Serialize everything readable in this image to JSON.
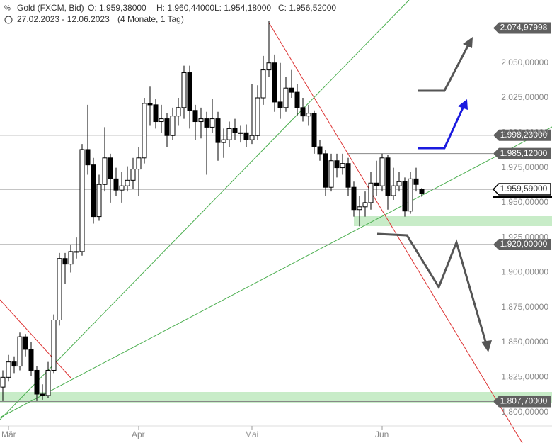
{
  "chart_data": {
    "type": "candlestick",
    "title": "Gold (FXCM, Bid)",
    "header": {
      "open": "O: 1.959,38000",
      "high": "H: 1.960,44000",
      "low": "L: 1.954,18000",
      "close": "C: 1.956,52000",
      "range": "27.02.2023 - 12.06.2023",
      "period": "(4 Monate, 1 Tag)"
    },
    "categories": [
      null,
      "Mär",
      null,
      null,
      null,
      null,
      null,
      null,
      null,
      null,
      null,
      null,
      null,
      null,
      null,
      null,
      null,
      null,
      null,
      null,
      null,
      null,
      null,
      null,
      "Apr",
      null,
      null,
      null,
      null,
      null,
      null,
      null,
      null,
      null,
      null,
      null,
      null,
      null,
      null,
      null,
      null,
      null,
      null,
      null,
      "Mai",
      null,
      null,
      null,
      null,
      null,
      null,
      null,
      null,
      null,
      null,
      null,
      null,
      null,
      null,
      null,
      null,
      null,
      null,
      null,
      null,
      null,
      null,
      "Jun",
      null,
      null,
      null,
      null,
      null,
      null,
      null
    ],
    "open": [
      1818,
      1825,
      1836,
      1833,
      1854,
      1845,
      1830,
      1813,
      1812,
      1830,
      1866,
      1910,
      1906,
      1915,
      1915,
      1988,
      1977,
      1940,
      1963,
      1982,
      1967,
      1959,
      1962,
      1966,
      1974,
      1982,
      2021,
      2020,
      2008,
      2010,
      1998,
      2012,
      2018,
      2043,
      2016,
      2008,
      2010,
      2004,
      2010,
      1993,
      1995,
      2003,
      2000,
      2000,
      1995,
      1998,
      2025,
      2045,
      2050,
      2022,
      2018,
      2032,
      2029,
      2018,
      2012,
      2014,
      1990,
      1985,
      1961,
      1980,
      1975,
      1978,
      1961,
      1945,
      1947,
      1950,
      1964,
      1962,
      1982,
      1955,
      1962,
      1965,
      1944,
      1967,
      1959.38
    ],
    "high": [
      1830,
      1841,
      1840,
      1857,
      1856,
      1850,
      1833,
      1820,
      1836,
      1870,
      1914,
      1914,
      1920,
      1925,
      1992,
      2020,
      1982,
      1970,
      2004,
      1985,
      1975,
      1972,
      1976,
      1982,
      1990,
      2025,
      2033,
      2024,
      2020,
      2014,
      2018,
      2025,
      2048,
      2048,
      2020,
      2018,
      2015,
      2024,
      2015,
      2003,
      2008,
      2010,
      2005,
      2006,
      2035,
      2034,
      2055,
      2080,
      2056,
      2050,
      2040,
      2045,
      2035,
      2025,
      2020,
      2016,
      1995,
      1988,
      1985,
      1985,
      1985,
      1982,
      1965,
      1955,
      1958,
      1972,
      1980,
      1985,
      1984,
      1975,
      1972,
      1968,
      1972,
      1975,
      1960.44
    ],
    "low": [
      1808,
      1822,
      1828,
      1830,
      1840,
      1826,
      1808,
      1809,
      1810,
      1828,
      1862,
      1892,
      1900,
      1910,
      1912,
      1970,
      1935,
      1937,
      1958,
      1950,
      1955,
      1950,
      1958,
      1960,
      1955,
      1978,
      2005,
      2003,
      2000,
      1990,
      1995,
      2005,
      2010,
      2003,
      1995,
      1996,
      1970,
      2000,
      1980,
      1982,
      1990,
      1995,
      1993,
      1990,
      1992,
      1995,
      2020,
      2040,
      2015,
      2010,
      2015,
      2025,
      2012,
      2008,
      2005,
      1985,
      1980,
      1955,
      1958,
      1968,
      1970,
      1955,
      1940,
      1933,
      1940,
      1945,
      1955,
      1958,
      1945,
      1952,
      1958,
      1940,
      1942,
      1958,
      1954.18
    ],
    "close": [
      1825,
      1836,
      1833,
      1854,
      1845,
      1830,
      1813,
      1812,
      1830,
      1866,
      1910,
      1906,
      1915,
      1915,
      1988,
      1977,
      1940,
      1963,
      1982,
      1967,
      1959,
      1962,
      1966,
      1974,
      1982,
      2021,
      2020,
      2008,
      2010,
      1998,
      2012,
      2018,
      2043,
      2016,
      2008,
      2010,
      2004,
      2010,
      1993,
      1995,
      2003,
      2000,
      2000,
      1995,
      1998,
      2025,
      2045,
      2050,
      2022,
      2018,
      2032,
      2029,
      2018,
      2012,
      2014,
      1990,
      1985,
      1961,
      1980,
      1975,
      1978,
      1961,
      1945,
      1947,
      1950,
      1964,
      1962,
      1982,
      1955,
      1962,
      1965,
      1944,
      1967,
      1963,
      1956.52
    ],
    "up_color": "#ffffff",
    "down_color": "#000000",
    "ylim": [
      1778,
      2095
    ],
    "yticks": [
      {
        "value": 1800,
        "label": "1.800,00000"
      },
      {
        "value": 1825,
        "label": "1.825,00000"
      },
      {
        "value": 1850,
        "label": "1.850,00000"
      },
      {
        "value": 1875,
        "label": "1.875,00000"
      },
      {
        "value": 1900,
        "label": "1.900,00000"
      },
      {
        "value": 1925,
        "label": "1.925,00000"
      },
      {
        "value": 1950,
        "label": "1.950,00000"
      },
      {
        "value": 1975,
        "label": "1.975,00000"
      },
      {
        "value": 2000,
        "label": "2.000,00000"
      },
      {
        "value": 2025,
        "label": "2.025,00000"
      },
      {
        "value": 2050,
        "label": "2.050,00000"
      }
    ],
    "levels": [
      {
        "value": 2074.97998,
        "label": "2.074,97998"
      },
      {
        "value": 1998.23,
        "label": "1.998,23000"
      },
      {
        "value": 1985.12,
        "label": "1.985,12000"
      },
      {
        "value": 1920.0,
        "label": "1.920,00000"
      },
      {
        "value": 1807.7,
        "label": "1.807,70000"
      }
    ],
    "last_price": {
      "value": 1959.59,
      "label": "1.959,59000"
    }
  }
}
